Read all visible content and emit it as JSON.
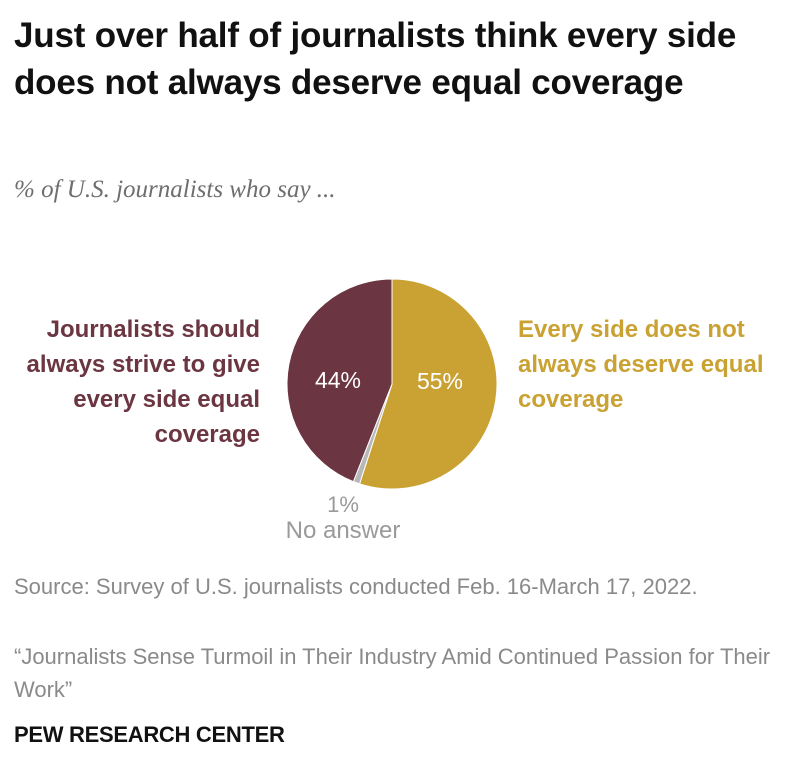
{
  "chart_data": {
    "type": "pie",
    "title": "Just over half of journalists think every side does not always deserve equal coverage",
    "subtitle": "% of U.S. journalists who say ...",
    "slices": [
      {
        "name": "Every side does not always deserve equal coverage",
        "value": 55,
        "label": "55%",
        "color": "#c9a233"
      },
      {
        "name": "No answer",
        "value": 1,
        "label": "1%",
        "color": "#b8b8b8"
      },
      {
        "name": "Journalists should always strive to give every side equal coverage",
        "value": 44,
        "label": "44%",
        "color": "#6b3542"
      }
    ],
    "legend": {
      "left_label": "Journalists should always strive to give every side equal coverage",
      "right_label": "Every side does not always deserve equal coverage",
      "no_answer_pct": "1%",
      "no_answer_label": "No answer"
    }
  },
  "source": {
    "note": "Source: Survey of U.S. journalists conducted Feb. 16-March 17, 2022.",
    "report": "“Journalists Sense Turmoil in Their Industry Amid Continued Passion for Their Work”"
  },
  "footer": {
    "org": "PEW RESEARCH CENTER"
  }
}
